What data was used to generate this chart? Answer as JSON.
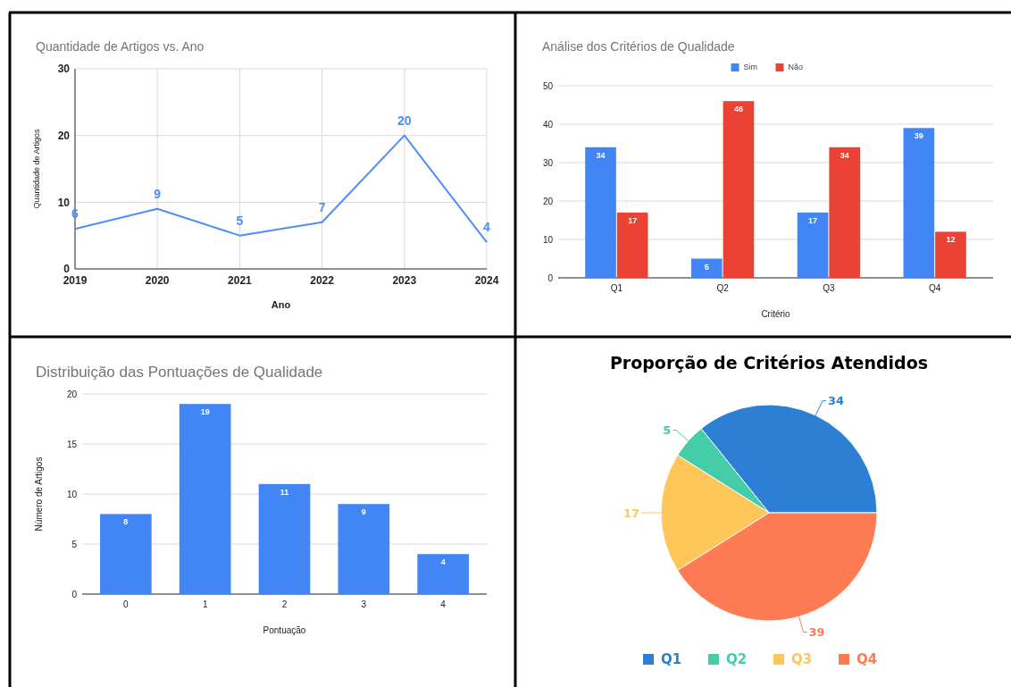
{
  "chart_data": [
    {
      "type": "line",
      "title": "Quantidade de Artigos vs. Ano",
      "xlabel": "Ano",
      "ylabel": "Quantidade de Artigos",
      "x": [
        2019,
        2020,
        2021,
        2022,
        2023,
        2024
      ],
      "xlim": [
        2019,
        2024
      ],
      "xticks": [
        2019,
        2020,
        2021,
        2022,
        2023,
        2024
      ],
      "ylim": [
        0,
        30
      ],
      "yticks": [
        0,
        10,
        20,
        30
      ],
      "grid": true,
      "data_labels": true,
      "marker": "none",
      "series": [
        {
          "color": "#4e8ef7",
          "values": [
            6,
            9,
            5,
            7,
            20,
            4
          ]
        }
      ]
    },
    {
      "type": "bar",
      "title": "Análise dos Critérios de Qualidade",
      "xlabel": "Critério",
      "categories": [
        "Q1",
        "Q2",
        "Q3",
        "Q4"
      ],
      "ylim": [
        0,
        50
      ],
      "yticks": [
        0,
        10,
        20,
        30,
        40,
        50
      ],
      "grid": "y",
      "legend": "top",
      "data_labels": true,
      "series": [
        {
          "name": "Sim",
          "color": "#4285f4",
          "values": [
            34,
            5,
            17,
            39
          ]
        },
        {
          "name": "Não",
          "color": "#ea4335",
          "values": [
            17,
            46,
            34,
            12
          ]
        }
      ]
    },
    {
      "type": "bar",
      "title": "Distribuição das Pontuações de Qualidade",
      "xlabel": "Pontuação",
      "ylabel": "Número de Artigos",
      "categories": [
        "0",
        "1",
        "2",
        "3",
        "4"
      ],
      "ylim": [
        0,
        20
      ],
      "yticks": [
        0,
        5,
        10,
        15,
        20
      ],
      "grid": "y",
      "data_labels": true,
      "series": [
        {
          "color": "#4285f4",
          "values": [
            8,
            19,
            11,
            9,
            4
          ]
        }
      ]
    },
    {
      "type": "pie",
      "title": "Proporção de Critérios Atendidos",
      "categories": [
        "Q1",
        "Q2",
        "Q3",
        "Q4"
      ],
      "values": [
        34,
        5,
        17,
        39
      ],
      "colors": [
        "#2d7fd4",
        "#45cca8",
        "#ffc759",
        "#ff7b54"
      ],
      "data_labels": true,
      "legend": "bottom"
    }
  ]
}
